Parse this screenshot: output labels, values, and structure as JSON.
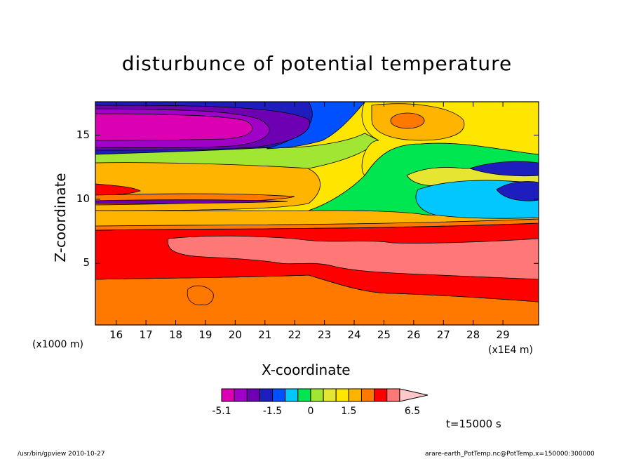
{
  "chart_data": {
    "type": "heatmap",
    "title": "disturbunce of potential temperature",
    "xlabel": "X-coordinate",
    "ylabel": "Z-coordinate",
    "x_ticks": [
      "16",
      "17",
      "18",
      "19",
      "20",
      "21",
      "22",
      "23",
      "24",
      "25",
      "26",
      "27",
      "28",
      "29"
    ],
    "y_ticks": [
      "5",
      "10",
      "15"
    ],
    "x_unit_left": "(x1000 m)",
    "x_unit_right": "(x1E4 m)",
    "xlim": [
      15300,
      30200
    ],
    "ylim": [
      0.2,
      17.6
    ],
    "colorbar": {
      "levels": [
        -5.1,
        -4.1,
        -3.1,
        -2.1,
        -1.5,
        -1.0,
        -0.5,
        0,
        0.5,
        1.0,
        1.5,
        2.5,
        3.5,
        4.5,
        5.5,
        6.5
      ],
      "colors": [
        "#dc00b4",
        "#a000c8",
        "#6e00b4",
        "#1e1ebe",
        "#0050ff",
        "#00c8ff",
        "#00e650",
        "#a0e632",
        "#e6e632",
        "#ffe600",
        "#ffb400",
        "#ff7800",
        "#ff0000",
        "#ff7878",
        "#ffc8c8"
      ],
      "tick_labels": [
        "-5.1",
        "-1.5",
        "0",
        "1.5",
        "6.5"
      ]
    },
    "time_label": "t=15000 s"
  },
  "footer": {
    "left": "/usr/bin/gpview   2010-10-27",
    "right": "arare-earth_PotTemp.nc@PotTemp,x=150000:300000"
  }
}
